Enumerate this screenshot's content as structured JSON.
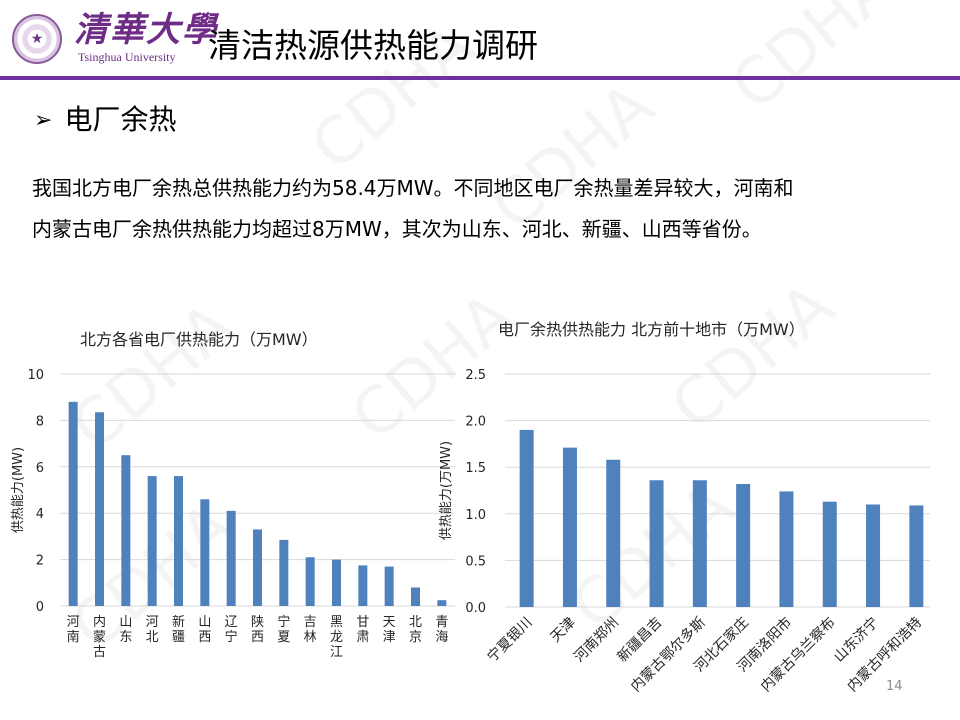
{
  "header": {
    "logo_cn": "清華大學",
    "logo_en": "Tsinghua University",
    "title": "清洁热源供热能力调研",
    "accent_color": "#7030a0"
  },
  "section": {
    "bullet_icon": "arrow-bullet-icon",
    "heading": "电厂余热"
  },
  "body": {
    "line1": "我国北方电厂余热总供热能力约为58.4万MW。不同地区电厂余热量差异较大，河南和",
    "line2": "内蒙古电厂余热供热能力均超过8万MW，其次为山东、河北、新疆、山西等省份。"
  },
  "watermark": "CDHA",
  "page_number": "14",
  "chart_data": [
    {
      "type": "bar",
      "title": "北方各省电厂供热能力（万MW）",
      "xlabel": "",
      "ylabel": "供热能力(MW)",
      "ylim": [
        0,
        10
      ],
      "yticks": [
        "0",
        "2",
        "4",
        "6",
        "8",
        "10"
      ],
      "grid": true,
      "bar_color": "#4f81bd",
      "categories": [
        "河南",
        "内蒙古",
        "山东",
        "河北",
        "新疆",
        "山西",
        "辽宁",
        "陕西",
        "宁夏",
        "吉林",
        "黑龙江",
        "甘肃",
        "天津",
        "北京",
        "青海"
      ],
      "values": [
        8.8,
        8.35,
        6.5,
        5.6,
        5.6,
        4.6,
        4.1,
        3.3,
        2.85,
        2.1,
        2.0,
        1.75,
        1.7,
        0.8,
        0.25
      ]
    },
    {
      "type": "bar",
      "title": "电厂余热供热能力 北方前十地市（万MW）",
      "xlabel": "",
      "ylabel": "供热能力(万MW)",
      "ylim": [
        0,
        2.5
      ],
      "yticks": [
        "0.0",
        "0.5",
        "1.0",
        "1.5",
        "2.0",
        "2.5"
      ],
      "grid": true,
      "bar_color": "#4f81bd",
      "categories": [
        "宁夏银川",
        "天津",
        "河南郑州",
        "新疆昌吉",
        "内蒙古鄂尔多斯",
        "河北石家庄",
        "河南洛阳市",
        "内蒙古乌兰察布",
        "山东济宁",
        "内蒙古呼和浩特"
      ],
      "values": [
        1.9,
        1.71,
        1.58,
        1.36,
        1.36,
        1.32,
        1.24,
        1.13,
        1.1,
        1.09
      ]
    }
  ]
}
